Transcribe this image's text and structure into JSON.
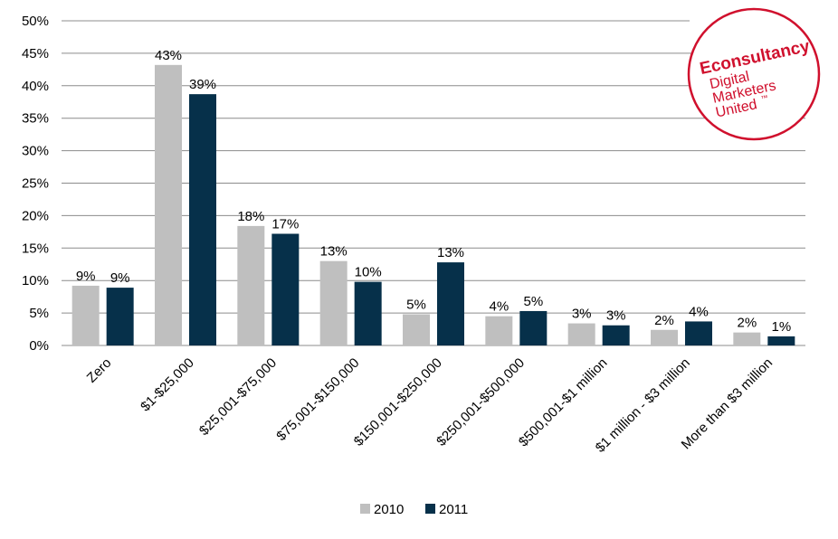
{
  "chart_data": {
    "type": "bar",
    "categories": [
      "Zero",
      "$1-$25,000",
      "$25,001-$75,000",
      "$75,001-$150,000",
      "$150,001-$250,000",
      "$250,001-$500,000",
      "$500,001-$1 million",
      "$1 million - $3 million",
      "More than $3 million"
    ],
    "series": [
      {
        "name": "2010",
        "color": "#bfbfbf",
        "values": [
          9.2,
          43.2,
          18.4,
          13.0,
          4.8,
          4.5,
          3.4,
          2.4,
          2.0
        ],
        "labels": [
          "9%",
          "43%",
          "18%",
          "13%",
          "5%",
          "4%",
          "3%",
          "2%",
          "2%"
        ]
      },
      {
        "name": "2011",
        "color": "#06304a",
        "values": [
          8.9,
          38.7,
          17.2,
          9.8,
          12.8,
          5.3,
          3.1,
          3.7,
          1.4
        ],
        "labels": [
          "9%",
          "39%",
          "17%",
          "10%",
          "13%",
          "5%",
          "3%",
          "4%",
          "1%"
        ]
      }
    ],
    "ylim": [
      0,
      50
    ],
    "yticks": [
      {
        "value": 0,
        "label": "0%"
      },
      {
        "value": 5,
        "label": "5%"
      },
      {
        "value": 10,
        "label": "10%"
      },
      {
        "value": 15,
        "label": "15%"
      },
      {
        "value": 20,
        "label": "20%"
      },
      {
        "value": 25,
        "label": "25%"
      },
      {
        "value": 30,
        "label": "30%"
      },
      {
        "value": 35,
        "label": "35%"
      },
      {
        "value": 40,
        "label": "40%"
      },
      {
        "value": 45,
        "label": "45%"
      },
      {
        "value": 50,
        "label": "50%"
      }
    ],
    "title": "",
    "xlabel": "",
    "ylabel": "",
    "grid": true,
    "legend": "bottom-center"
  },
  "logo": {
    "brand": "Econsultancy",
    "tagline_1": "Digital",
    "tagline_2": "Marketers",
    "tagline_3": "United",
    "tm": "™",
    "color": "#d0102d"
  }
}
